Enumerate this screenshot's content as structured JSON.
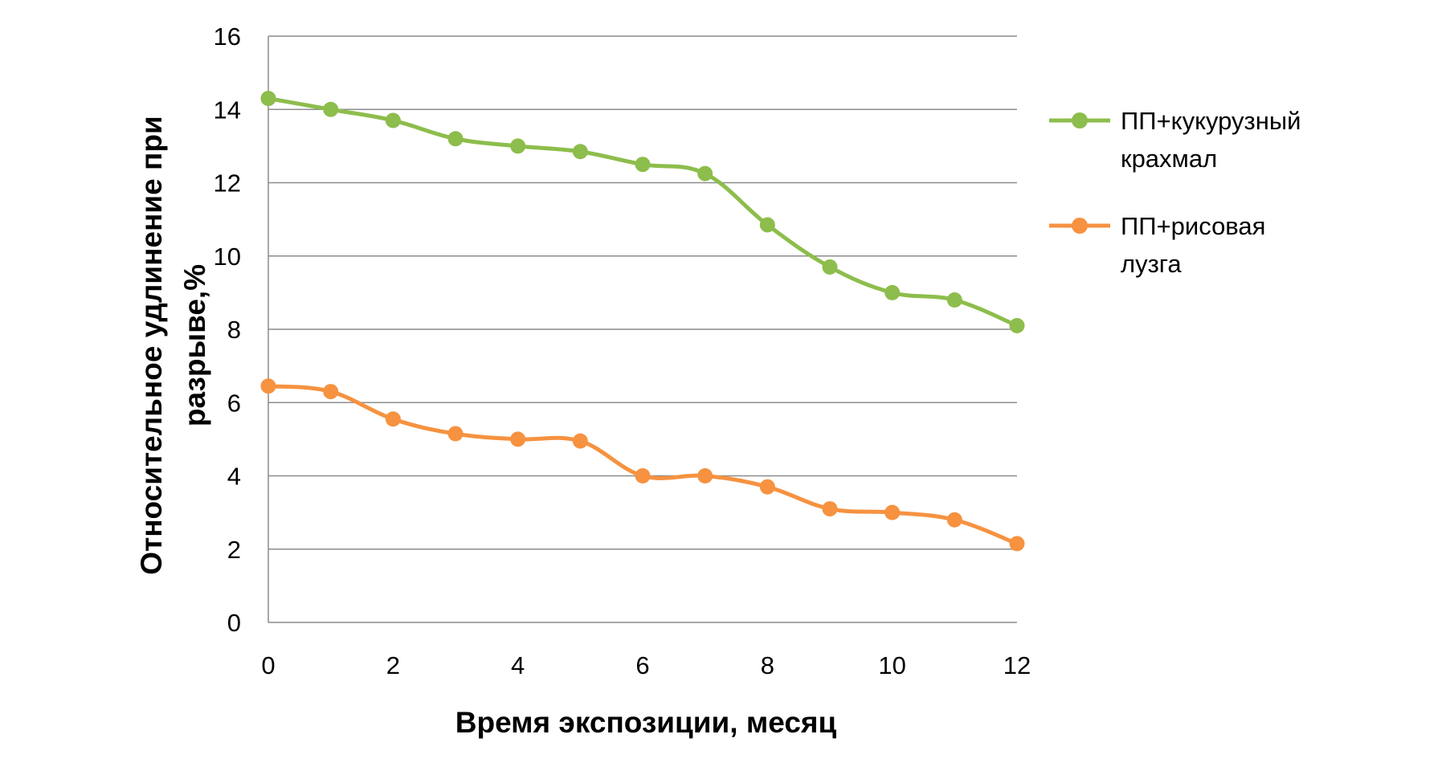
{
  "chart_data": {
    "type": "line",
    "title": "",
    "xlabel": "Время экспозиции, месяц",
    "ylabel_lines": [
      "Относительное удлинение при",
      "разрыве,%"
    ],
    "xlim": [
      0,
      12
    ],
    "ylim": [
      0,
      16
    ],
    "xticks": [
      0,
      2,
      4,
      6,
      8,
      10,
      12
    ],
    "yticks": [
      0,
      2,
      4,
      6,
      8,
      10,
      12,
      14,
      16
    ],
    "grid": "horizontal",
    "legend_position": "right",
    "x": [
      0,
      1,
      2,
      3,
      4,
      5,
      6,
      7,
      8,
      9,
      10,
      11,
      12
    ],
    "series": [
      {
        "name_lines": [
          "ПП+кукурузный",
          "крахмал"
        ],
        "color": "#8dbd4c",
        "values": [
          14.3,
          14.0,
          13.7,
          13.2,
          13.0,
          12.85,
          12.5,
          12.25,
          10.85,
          9.7,
          9.0,
          8.8,
          8.1
        ]
      },
      {
        "name_lines": [
          "ПП+рисовая",
          "лузга"
        ],
        "color": "#f69240",
        "values": [
          6.45,
          6.3,
          5.55,
          5.15,
          5.0,
          4.95,
          4.0,
          4.0,
          3.7,
          3.1,
          3.0,
          2.8,
          2.15
        ]
      }
    ]
  }
}
